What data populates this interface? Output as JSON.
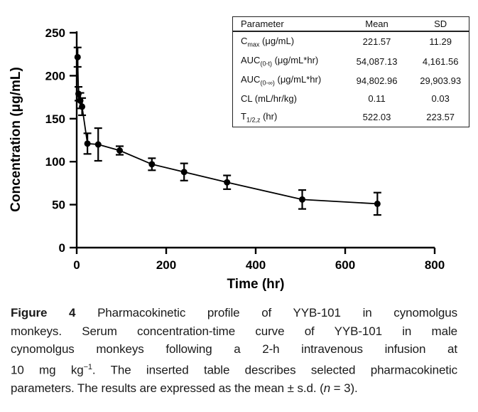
{
  "colors": {
    "ink": "#000000",
    "background": "#ffffff"
  },
  "chart_data": {
    "type": "line",
    "title": "",
    "xlabel": "Time (hr)",
    "ylabel": "Concentration (μg/mL)",
    "xlim": [
      0,
      800
    ],
    "ylim": [
      0,
      250
    ],
    "x_ticks": [
      0,
      200,
      400,
      600,
      800
    ],
    "y_ticks": [
      0,
      50,
      100,
      150,
      200,
      250
    ],
    "grid": false,
    "legend": "none",
    "error_bars": true,
    "marker": "filled-circle",
    "series": [
      {
        "name": "YYB-101 serum concentration, mean ± s.d. (n = 3)",
        "x": [
          2,
          4,
          8,
          12,
          24,
          48,
          96,
          168,
          240,
          336,
          504,
          672
        ],
        "y": [
          221.57,
          179,
          171,
          164,
          121,
          120,
          113,
          97,
          88,
          76,
          56,
          51
        ],
        "sd": [
          11.29,
          8,
          9,
          10,
          12,
          19,
          5,
          7,
          10,
          8,
          11,
          13
        ],
        "color": "#000000"
      }
    ]
  },
  "table": {
    "headers": [
      "Parameter",
      "Mean",
      "SD"
    ],
    "rows": [
      {
        "param": [
          {
            "t": "C"
          },
          {
            "sub": "max"
          },
          {
            "t": " (μg/mL)"
          }
        ],
        "mean": "221.57",
        "sd": "11.29"
      },
      {
        "param": [
          {
            "t": "AUC"
          },
          {
            "sub": "(0-t)"
          },
          {
            "t": " (μg/mL*hr)"
          }
        ],
        "mean": "54,087.13",
        "sd": "4,161.56"
      },
      {
        "param": [
          {
            "t": "AUC"
          },
          {
            "sub": "(0-∞)"
          },
          {
            "t": " (μg/mL*hr)"
          }
        ],
        "mean": "94,802.96",
        "sd": "29,903.93"
      },
      {
        "param": [
          {
            "t": "CL (mL/hr/kg)"
          }
        ],
        "mean": "0.11",
        "sd": "0.03"
      },
      {
        "param": [
          {
            "t": "T"
          },
          {
            "sub": "1/2,z"
          },
          {
            "t": " (hr)"
          }
        ],
        "mean": "522.03",
        "sd": "223.57"
      }
    ]
  },
  "figure": {
    "caption": {
      "figure_label": "Figure 4",
      "line1_rest": " Pharmacokinetic profile of YYB-101 in cynomolgus",
      "line2": "monkeys. Serum concentration-time curve of YYB-101 in male",
      "line3": "cynomolgus monkeys following a 2-h intravenous infusion at",
      "line4_pre": "10 mg kg",
      "line4_sup": "−1",
      "line4_post": ". The inserted table describes selected pharmacokinetic",
      "line5_pre": "parameters. The results are expressed as the mean ± s.d. (",
      "line5_italic": "n",
      "line5_post": " = 3)."
    }
  }
}
